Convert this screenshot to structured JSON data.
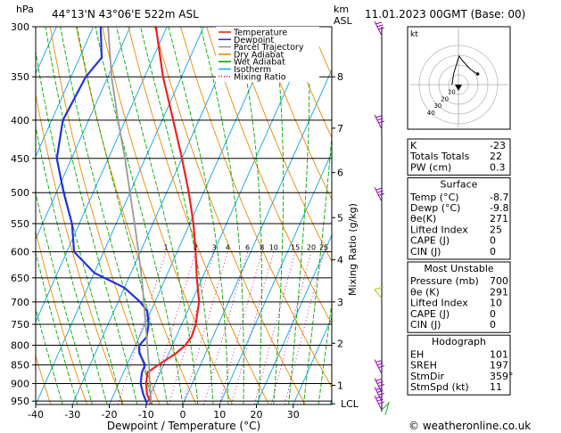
{
  "header": {
    "hpa_label": "hPa",
    "location": "44°13'N 43°06'E 522m ASL",
    "km_label": "km",
    "asl_label": "ASL",
    "date": "11.01.2023 00GMT (Base: 00)"
  },
  "legend": [
    {
      "label": "Temperature",
      "color": "#ee2222",
      "style": "solid"
    },
    {
      "label": "Dewpoint",
      "color": "#2233dd",
      "style": "solid"
    },
    {
      "label": "Parcel Trajectory",
      "color": "#999999",
      "style": "solid"
    },
    {
      "label": "Dry Adiabat",
      "color": "#ee8800",
      "style": "solid"
    },
    {
      "label": "Wet Adiabat",
      "color": "#00aa00",
      "style": "solid"
    },
    {
      "label": "Isotherm",
      "color": "#22aaee",
      "style": "solid"
    },
    {
      "label": "Mixing Ratio",
      "color": "#dd0088",
      "style": "dotted"
    }
  ],
  "chart_data": {
    "type": "line",
    "title": "",
    "xlabel": "Dewpoint / Temperature (°C)",
    "ylabel": "hPa",
    "right_axis_label": "Mixing Ratio (g/kg)",
    "xlim": [
      -40,
      40
    ],
    "ylim": [
      300,
      960
    ],
    "skew_per_decade": 162,
    "pressure_levels": [
      300,
      350,
      400,
      450,
      500,
      550,
      600,
      650,
      700,
      750,
      800,
      850,
      900,
      950
    ],
    "x_ticks": [
      -40,
      -30,
      -20,
      -10,
      0,
      10,
      20,
      30
    ],
    "km_ticks": [
      {
        "label": "8",
        "p": 350
      },
      {
        "label": "7",
        "p": 410
      },
      {
        "label": "6",
        "p": 470
      },
      {
        "label": "5",
        "p": 540
      },
      {
        "label": "4",
        "p": 615
      },
      {
        "label": "3",
        "p": 700
      },
      {
        "label": "2",
        "p": 795
      },
      {
        "label": "1",
        "p": 905
      },
      {
        "label": "LCL",
        "p": 958
      }
    ],
    "mixing_ratios": [
      "1",
      "2",
      "3",
      "4",
      "6",
      "8",
      "10",
      "15",
      "20",
      "25"
    ],
    "series": [
      {
        "name": "Temperature",
        "color": "#ee2222",
        "points": [
          [
            958,
            -8.7
          ],
          [
            930,
            -11
          ],
          [
            900,
            -12.5
          ],
          [
            870,
            -13.5
          ],
          [
            850,
            -11.5
          ],
          [
            820,
            -8
          ],
          [
            800,
            -6.5
          ],
          [
            780,
            -5.8
          ],
          [
            750,
            -6.2
          ],
          [
            700,
            -8
          ],
          [
            650,
            -11.5
          ],
          [
            600,
            -15
          ],
          [
            550,
            -19
          ],
          [
            500,
            -24
          ],
          [
            450,
            -30
          ],
          [
            400,
            -37
          ],
          [
            350,
            -45
          ],
          [
            300,
            -53
          ]
        ]
      },
      {
        "name": "Dewpoint",
        "color": "#2233dd",
        "points": [
          [
            958,
            -9.8
          ],
          [
            930,
            -12
          ],
          [
            900,
            -14
          ],
          [
            870,
            -15
          ],
          [
            850,
            -15
          ],
          [
            820,
            -18
          ],
          [
            800,
            -19
          ],
          [
            780,
            -18
          ],
          [
            750,
            -19
          ],
          [
            720,
            -21
          ],
          [
            700,
            -24
          ],
          [
            670,
            -30
          ],
          [
            640,
            -40
          ],
          [
            600,
            -48
          ],
          [
            550,
            -52
          ],
          [
            500,
            -58
          ],
          [
            450,
            -64
          ],
          [
            400,
            -67
          ],
          [
            350,
            -66
          ],
          [
            330,
            -64
          ],
          [
            300,
            -68
          ]
        ]
      },
      {
        "name": "Parcel Trajectory",
        "color": "#999999",
        "points": [
          [
            958,
            -8.7
          ],
          [
            900,
            -11.5
          ],
          [
            850,
            -14
          ],
          [
            800,
            -16.8
          ],
          [
            750,
            -19.8
          ],
          [
            700,
            -23
          ],
          [
            650,
            -26.5
          ],
          [
            600,
            -30.5
          ],
          [
            550,
            -35
          ],
          [
            500,
            -40
          ],
          [
            450,
            -45.5
          ],
          [
            400,
            -52
          ],
          [
            350,
            -59
          ],
          [
            300,
            -66
          ]
        ]
      }
    ]
  },
  "hodograph": {
    "label": "kt",
    "ring_labels": [
      "10",
      "20",
      "30",
      "40"
    ],
    "points": [
      [
        -8,
        40
      ],
      [
        -6,
        28
      ],
      [
        -4,
        22
      ],
      [
        -2,
        16
      ],
      [
        0,
        10
      ],
      [
        1,
        8
      ],
      [
        4,
        12
      ],
      [
        8,
        16
      ],
      [
        14,
        22
      ],
      [
        20,
        26
      ],
      [
        24,
        28
      ]
    ]
  },
  "indices": {
    "rows": [
      {
        "name": "K",
        "value": "-23"
      },
      {
        "name": "Totals Totals",
        "value": "22"
      },
      {
        "name": "PW (cm)",
        "value": "0.3"
      }
    ]
  },
  "surface": {
    "title": "Surface",
    "rows": [
      {
        "name": "Temp (°C)",
        "value": "-8.7"
      },
      {
        "name": "Dewp (°C)",
        "value": "-9.8"
      },
      {
        "name": "θe(K)",
        "value": "271"
      },
      {
        "name": "Lifted Index",
        "value": "25"
      },
      {
        "name": "CAPE (J)",
        "value": "0"
      },
      {
        "name": "CIN (J)",
        "value": "0"
      }
    ]
  },
  "most_unstable": {
    "title": "Most Unstable",
    "rows": [
      {
        "name": "Pressure (mb)",
        "value": "700"
      },
      {
        "name": "θe (K)",
        "value": "291"
      },
      {
        "name": "Lifted Index",
        "value": "10"
      },
      {
        "name": "CAPE (J)",
        "value": "0"
      },
      {
        "name": "CIN (J)",
        "value": "0"
      }
    ]
  },
  "hodograph_table": {
    "title": "Hodograph",
    "rows": [
      {
        "name": "EH",
        "value": "101"
      },
      {
        "name": "SREH",
        "value": "197"
      },
      {
        "name": "StmDir",
        "value": "359°"
      },
      {
        "name": "StmSpd (kt)",
        "value": "11"
      }
    ]
  },
  "footer": {
    "copyright": "© weatheronline.co.uk"
  },
  "colors": {
    "temperature": "#ee2222",
    "dewpoint": "#2233dd",
    "parcel": "#999999",
    "dry_adiabat": "#ee8800",
    "wet_adiabat": "#00aa00",
    "isotherm": "#22aaee",
    "mixing_ratio": "#dd0088",
    "wind_barb": "#9900cc"
  }
}
